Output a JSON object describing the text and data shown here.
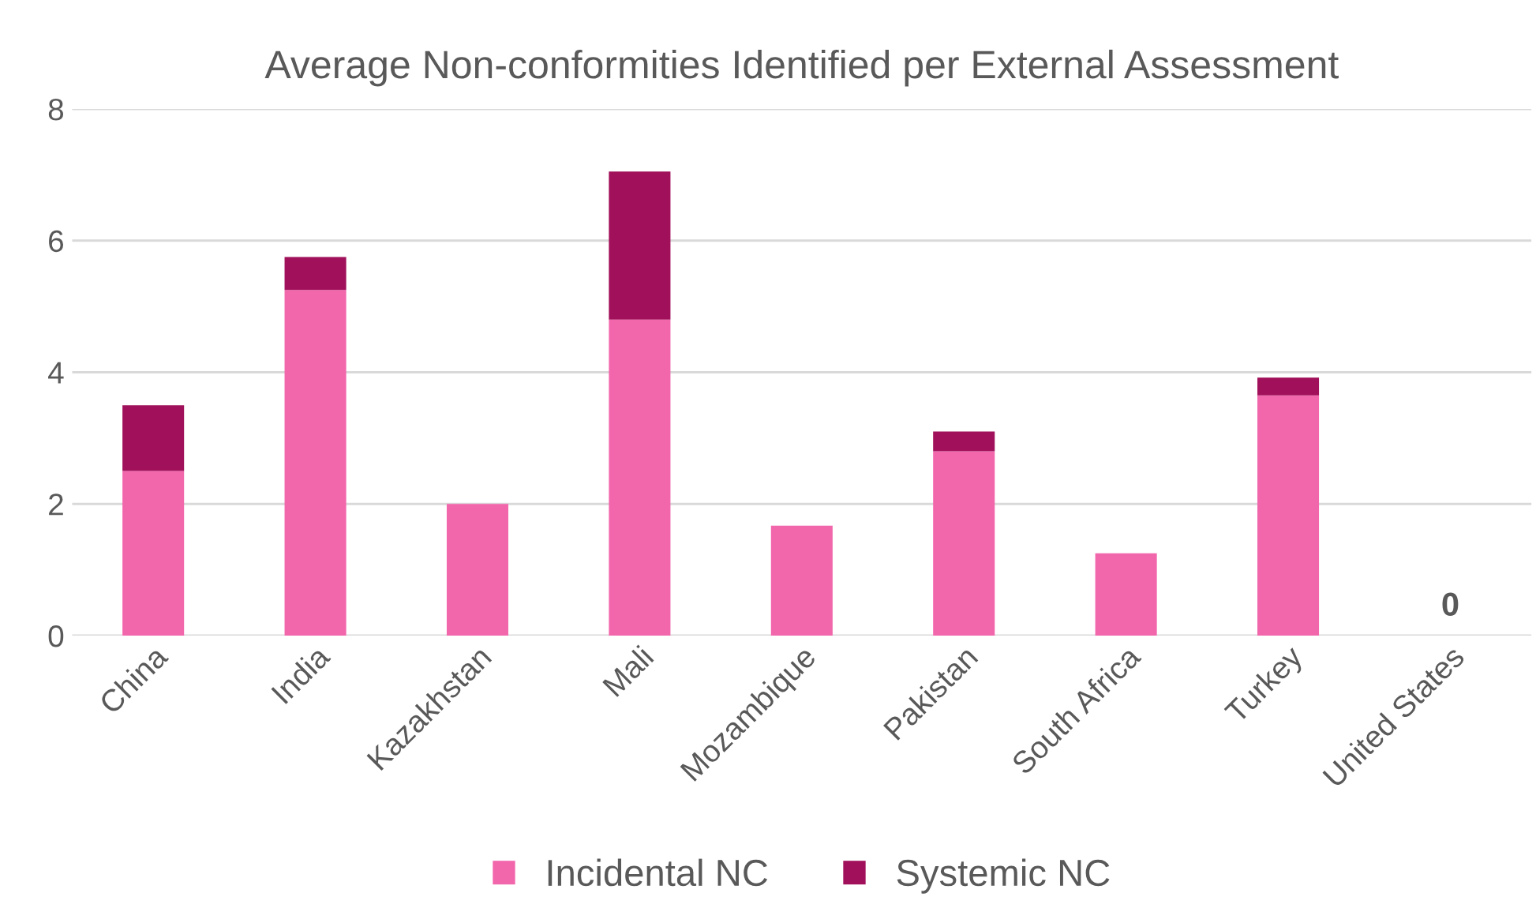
{
  "chart_data": {
    "type": "bar",
    "title": "Average Non-conformities Identified per External Assessment",
    "categories": [
      "China",
      "India",
      "Kazakhstan",
      "Mali",
      "Mozambique",
      "Pakistan",
      "South Africa",
      "Turkey",
      "United States"
    ],
    "stacked": true,
    "series": [
      {
        "name": "Incidental NC",
        "color": "#f266ac",
        "values": [
          2.5,
          5.25,
          2.0,
          4.8,
          1.67,
          2.8,
          1.25,
          3.65,
          0
        ]
      },
      {
        "name": "Systemic NC",
        "color": "#a1105a",
        "values": [
          1.0,
          0.5,
          0,
          2.25,
          0,
          0.3,
          0,
          0.27,
          0
        ]
      }
    ],
    "ylim": [
      0,
      8
    ],
    "yticks": [
      0,
      2,
      4,
      6,
      8
    ],
    "grid": "y",
    "legend": "bottom",
    "annotations": [
      {
        "text": "0",
        "x": "United States",
        "y": 0
      }
    ]
  }
}
